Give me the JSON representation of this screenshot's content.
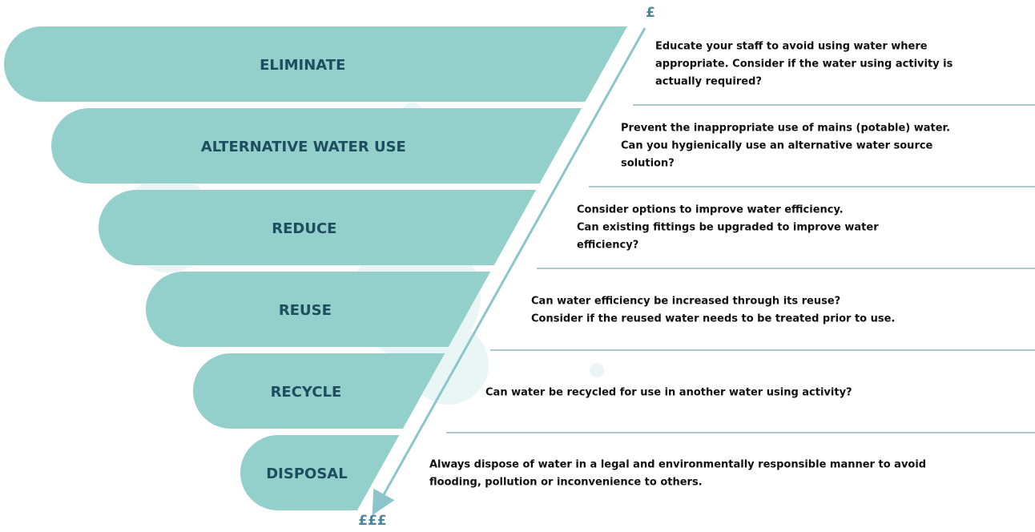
{
  "arrow": {
    "top": "£",
    "bottom": "£££"
  },
  "tiers": [
    {
      "label": "ELIMINATE",
      "description": [
        "Educate your staff to avoid using water where",
        "appropriate. Consider if the water using activity is",
        "actually required?"
      ]
    },
    {
      "label": "ALTERNATIVE WATER USE",
      "description": [
        "Prevent the inappropriate use of mains (potable) water.",
        "Can you hygienically use an alternative water source",
        "solution?"
      ]
    },
    {
      "label": "REDUCE",
      "description": [
        "Consider options to improve water efficiency.",
        "Can existing fittings be upgraded to improve water",
        "efficiency?"
      ]
    },
    {
      "label": "REUSE",
      "description": [
        "Can water efficiency be increased through its reuse?",
        "Consider if the reused water needs to be treated prior to use."
      ]
    },
    {
      "label": "RECYCLE",
      "description": [
        "Can water be recycled for use in another water using activity?"
      ]
    },
    {
      "label": "DISPOSAL",
      "description": [
        "Always dispose of water in a legal and environmentally responsible manner to avoid",
        "flooding, pollution or inconvenience to others."
      ]
    }
  ]
}
